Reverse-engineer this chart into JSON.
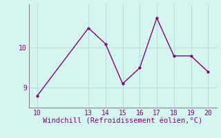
{
  "x": [
    10,
    13,
    14,
    15,
    16,
    17,
    18,
    19,
    20
  ],
  "y": [
    8.8,
    10.5,
    10.1,
    9.1,
    9.5,
    10.75,
    9.8,
    9.8,
    9.4
  ],
  "line_color": "#800080",
  "marker": ".",
  "marker_size": 4,
  "marker_linewidth": 1.0,
  "linewidth": 1.0,
  "xlabel": "Windchill (Refroidissement éolien,°C)",
  "xlabel_fontsize": 7.5,
  "xticks": [
    10,
    13,
    14,
    15,
    16,
    17,
    18,
    19,
    20
  ],
  "ytick_major": [
    9,
    10
  ],
  "ylim": [
    8.5,
    11.1
  ],
  "xlim": [
    9.5,
    20.5
  ],
  "background_color": "#d5f5f0",
  "grid_color": "#b0ddd8",
  "spine_color": "#888888",
  "tick_color": "#800080",
  "tick_fontsize": 7,
  "figsize": [
    3.2,
    2.0
  ],
  "dpi": 100
}
